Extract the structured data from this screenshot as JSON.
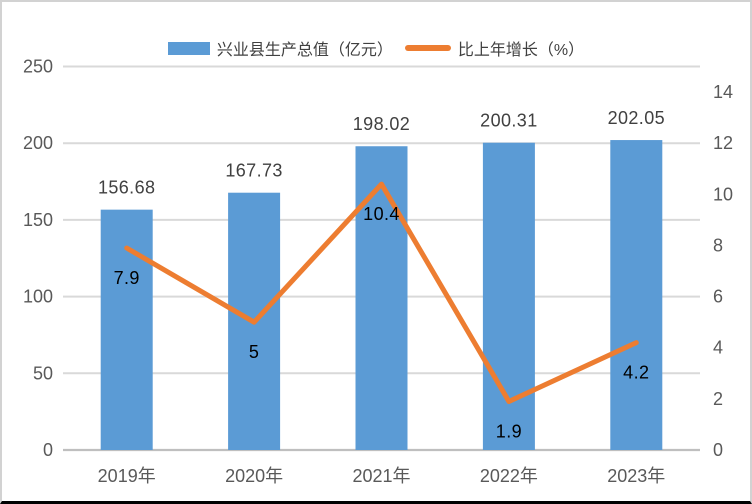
{
  "legend": [
    {
      "label": "兴业县生产总值（亿元）"
    },
    {
      "label": "比上年增长（%）"
    }
  ],
  "chart_data": {
    "type": "combo",
    "categories": [
      "2019年",
      "2020年",
      "2021年",
      "2022年",
      "2023年"
    ],
    "series": [
      {
        "name": "兴业县生产总值（亿元）",
        "type": "bar",
        "axis": "left",
        "color": "#5B9BD5",
        "values": [
          156.68,
          167.73,
          198.02,
          200.31,
          202.05
        ],
        "data_labels": [
          "156.68",
          "167.73",
          "198.02",
          "200.31",
          "202.05"
        ]
      },
      {
        "name": "比上年增长（%）",
        "type": "line",
        "axis": "right",
        "color": "#ED7D31",
        "values": [
          7.9,
          5,
          10.4,
          1.9,
          4.2
        ],
        "data_labels": [
          "7.9",
          "5",
          "10.4",
          "1.9",
          "4.2"
        ]
      }
    ],
    "left_axis": {
      "min": 0,
      "max": 250,
      "tick_labels": [
        "0",
        "50",
        "100",
        "150",
        "200",
        "250"
      ]
    },
    "right_axis": {
      "min": 0,
      "max": 15,
      "tick_step": 2,
      "tick_labels": [
        "0",
        "2",
        "4",
        "6",
        "8",
        "10",
        "12",
        "14"
      ]
    },
    "grid": true,
    "legend_position": "top",
    "colors": {
      "gridline": "#d9d9d9",
      "axis_line": "#bfbfbf",
      "tick_label": "#595959",
      "bar_data_label": "#404040",
      "line_data_label": "#000000",
      "page_border": "#d2d2d2",
      "bottom_rule": "#000000"
    }
  }
}
